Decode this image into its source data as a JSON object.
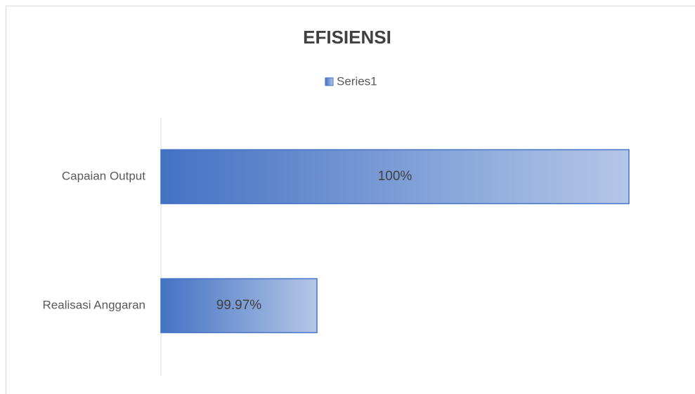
{
  "chart_data": {
    "type": "bar",
    "orientation": "horizontal",
    "title": "EFISIENSI",
    "categories": [
      "Capaian Output",
      "Realisasi Anggaran"
    ],
    "series": [
      {
        "name": "Series1",
        "color": "#4472c4",
        "values": [
          100,
          99.97
        ],
        "value_labels": [
          "100%",
          "99.97%"
        ]
      }
    ],
    "xlim": [
      99.955,
      100.005
    ],
    "legend": "top"
  }
}
